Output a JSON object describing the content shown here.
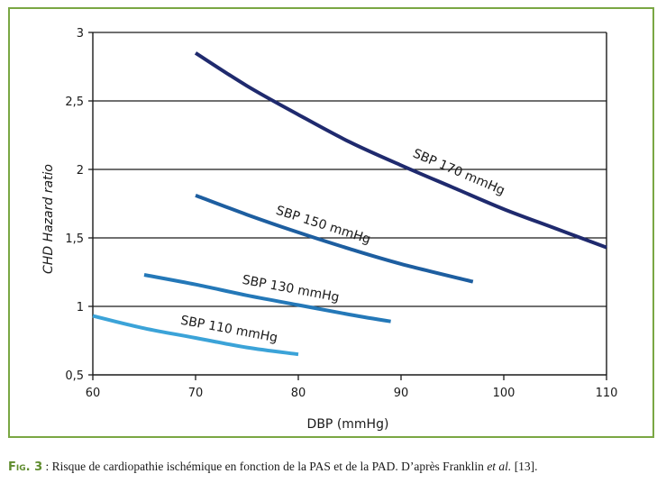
{
  "chart_data": {
    "type": "line",
    "xlabel": "DBP (mmHg)",
    "ylabel": "CHD Hazard ratio",
    "xlim": [
      60,
      110
    ],
    "ylim": [
      0.5,
      3
    ],
    "x_ticks": [
      {
        "value": 60,
        "label": "60"
      },
      {
        "value": 70,
        "label": "70"
      },
      {
        "value": 80,
        "label": "80"
      },
      {
        "value": 90,
        "label": "90"
      },
      {
        "value": 100,
        "label": "100"
      },
      {
        "value": 110,
        "label": "110"
      }
    ],
    "y_ticks": [
      {
        "value": 0.5,
        "label": "0,5"
      },
      {
        "value": 1,
        "label": "1"
      },
      {
        "value": 1.5,
        "label": "1,5"
      },
      {
        "value": 2,
        "label": "2"
      },
      {
        "value": 2.5,
        "label": "2,5"
      },
      {
        "value": 3,
        "label": "3"
      }
    ],
    "grid": {
      "horizontal": true,
      "vertical": false
    },
    "series": [
      {
        "name": "SBP 170 mmHg",
        "color": "#1f2a6e",
        "x": [
          70,
          75,
          80,
          85,
          90,
          95,
          100,
          105,
          110
        ],
        "y": [
          2.85,
          2.61,
          2.4,
          2.2,
          2.03,
          1.87,
          1.71,
          1.57,
          1.43
        ]
      },
      {
        "name": "SBP 150 mmHg",
        "color": "#1d5ea0",
        "x": [
          70,
          75,
          80,
          85,
          90,
          97
        ],
        "y": [
          1.81,
          1.67,
          1.54,
          1.42,
          1.31,
          1.18
        ]
      },
      {
        "name": "SBP 130 mmHg",
        "color": "#2478b8",
        "x": [
          65,
          70,
          75,
          80,
          85,
          89
        ],
        "y": [
          1.23,
          1.16,
          1.08,
          1.01,
          0.94,
          0.89
        ]
      },
      {
        "name": "SBP 110 mmHg",
        "color": "#3ba3d8",
        "x": [
          60,
          65,
          70,
          75,
          80
        ],
        "y": [
          0.93,
          0.84,
          0.77,
          0.7,
          0.65
        ]
      }
    ]
  },
  "caption": {
    "label": "Fig. 3",
    "separator": " : ",
    "text": "Risque de cardiopathie ischémique en fonction de la PAS et de la PAD. D’après Franklin ",
    "authors": "et al.",
    "reference": " [13]."
  }
}
